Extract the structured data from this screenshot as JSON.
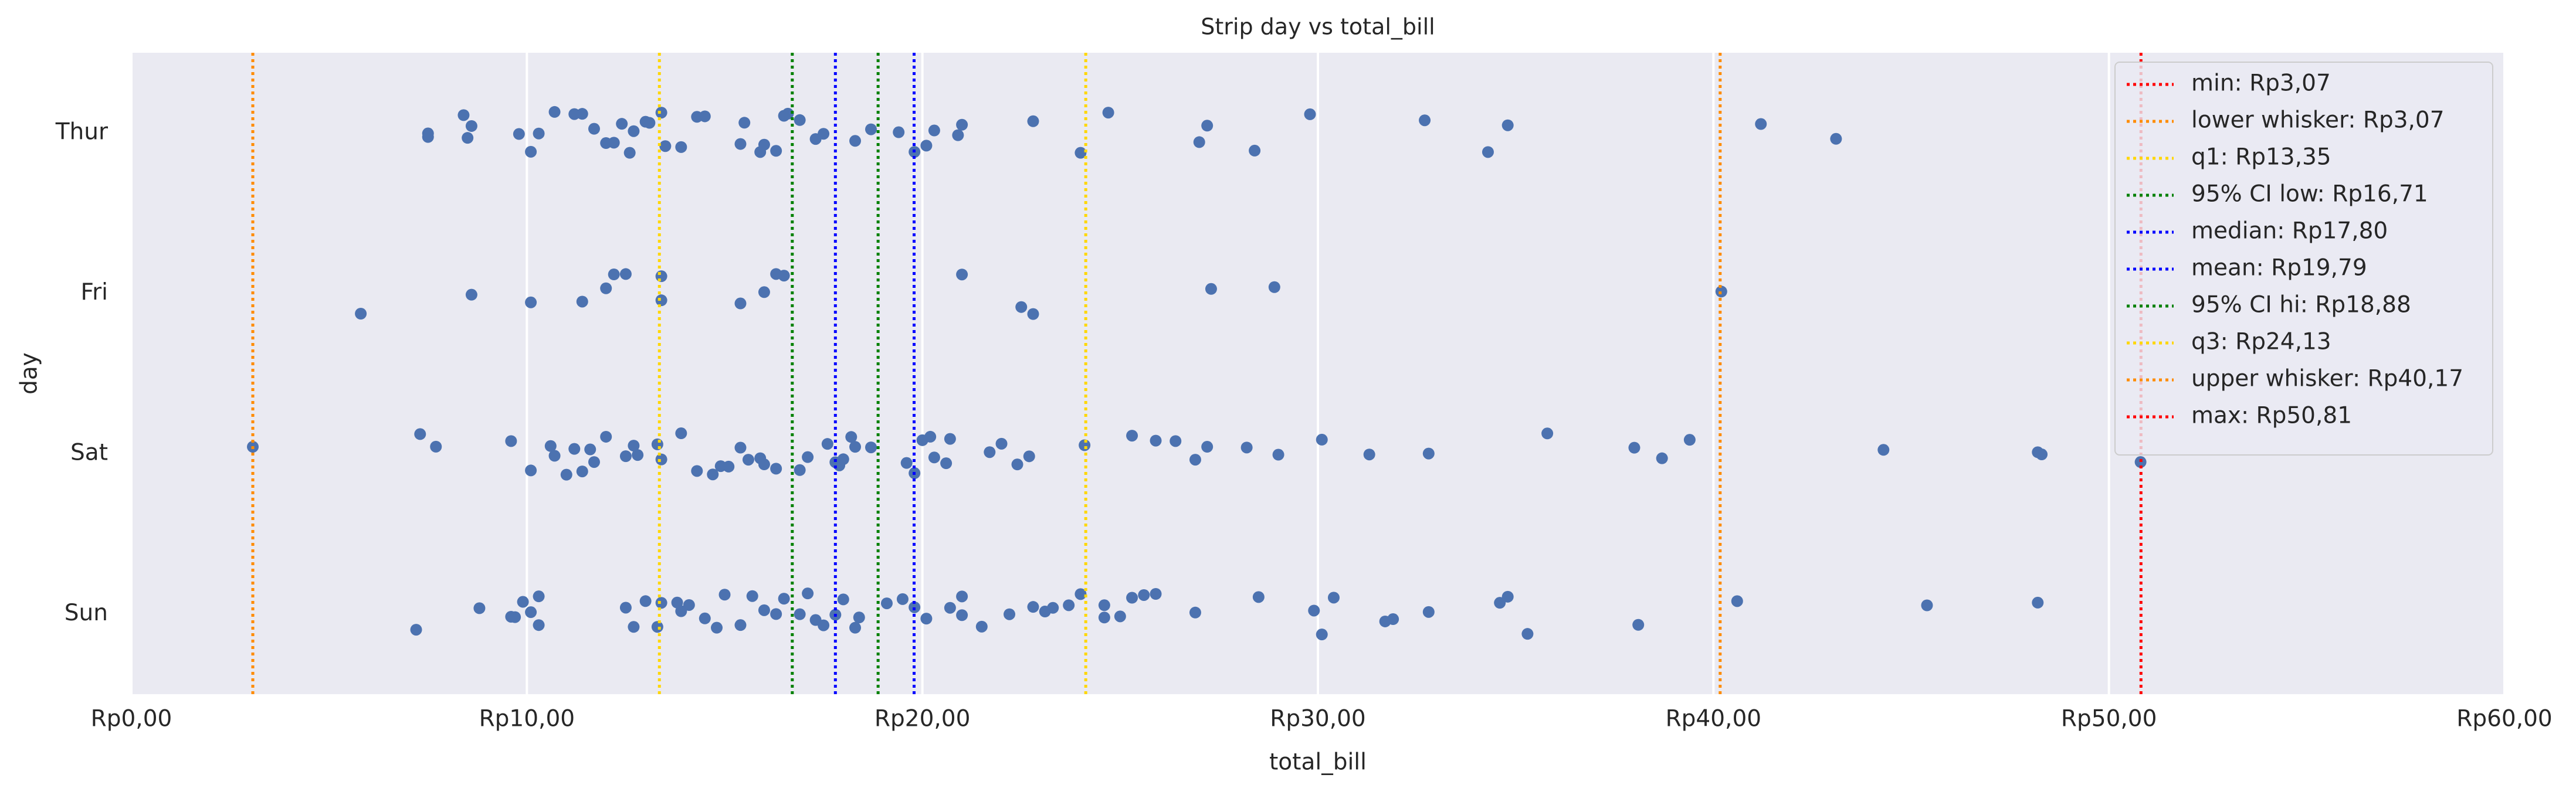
{
  "chart_data": {
    "type": "strip",
    "title": "Strip day vs total_bill",
    "x_label": "total_bill",
    "y_label": "day",
    "categories": [
      "Thur",
      "Fri",
      "Sat",
      "Sun"
    ],
    "color": "#4c72b0",
    "values": [
      [
        7.5,
        7.5,
        8.5,
        8.6,
        8.4,
        9.8,
        10.1,
        10.3,
        10.7,
        11.2,
        11.4,
        11.7,
        12.0,
        12.2,
        12.4,
        12.6,
        12.7,
        13.0,
        13.1,
        13.4,
        13.5,
        13.9,
        14.3,
        14.5,
        15.4,
        15.5,
        15.9,
        16.0,
        16.3,
        16.5,
        16.6,
        16.9,
        17.3,
        17.5,
        18.3,
        18.7,
        19.4,
        19.8,
        20.1,
        20.3,
        20.9,
        21.0,
        22.8,
        24.0,
        24.7,
        27.0,
        27.2,
        28.4,
        29.8,
        32.7,
        34.3,
        34.8,
        41.2,
        43.1
      ],
      [
        5.8,
        8.6,
        10.1,
        11.4,
        12.0,
        12.2,
        12.5,
        13.4,
        13.4,
        15.4,
        16.0,
        16.3,
        16.5,
        21.0,
        22.5,
        22.8,
        27.3,
        28.9,
        40.2
      ],
      [
        3.07,
        7.3,
        7.7,
        9.6,
        10.1,
        10.6,
        10.7,
        11.0,
        11.2,
        11.4,
        11.6,
        11.7,
        12.0,
        12.5,
        12.7,
        12.8,
        13.3,
        13.4,
        13.9,
        14.3,
        14.7,
        14.9,
        15.1,
        15.4,
        15.6,
        15.9,
        16.0,
        16.3,
        16.9,
        17.1,
        17.6,
        17.8,
        17.9,
        18.0,
        18.2,
        18.3,
        18.7,
        19.6,
        19.8,
        20.0,
        20.2,
        20.3,
        20.6,
        20.7,
        21.7,
        22.0,
        22.4,
        22.7,
        24.1,
        25.3,
        25.9,
        26.4,
        26.9,
        27.2,
        28.2,
        29.0,
        30.1,
        31.3,
        32.8,
        35.8,
        38.0,
        38.7,
        39.4,
        44.3,
        48.2,
        48.3,
        50.8
      ],
      [
        7.2,
        8.8,
        9.6,
        9.7,
        9.9,
        10.1,
        10.3,
        10.3,
        12.5,
        12.7,
        13.0,
        13.3,
        13.4,
        13.8,
        13.9,
        14.1,
        14.5,
        14.8,
        15.0,
        15.4,
        15.7,
        16.0,
        16.3,
        16.5,
        16.9,
        17.1,
        17.3,
        17.5,
        17.8,
        18.0,
        18.3,
        18.4,
        19.1,
        19.5,
        19.8,
        20.1,
        20.7,
        21.0,
        21.0,
        21.5,
        22.2,
        22.8,
        23.1,
        23.3,
        23.7,
        24.0,
        24.6,
        24.6,
        25.0,
        25.3,
        25.6,
        25.9,
        26.9,
        28.5,
        29.9,
        30.1,
        30.4,
        31.7,
        31.9,
        32.8,
        34.6,
        34.8,
        35.3,
        38.1,
        40.6,
        45.4,
        48.2
      ]
    ],
    "xlim": [
      0,
      60
    ],
    "xticks": [
      {
        "value": 0,
        "label": "Rp0,00"
      },
      {
        "value": 10,
        "label": "Rp10,00"
      },
      {
        "value": 20,
        "label": "Rp20,00"
      },
      {
        "value": 30,
        "label": "Rp30,00"
      },
      {
        "value": 40,
        "label": "Rp40,00"
      },
      {
        "value": 50,
        "label": "Rp50,00"
      },
      {
        "value": 60,
        "label": "Rp60,00"
      }
    ],
    "grid": true,
    "legend": "upper right",
    "reference_lines": [
      {
        "label": "min: Rp3,07",
        "value": 3.07,
        "color": "red"
      },
      {
        "label": "lower whisker: Rp3,07",
        "value": 3.07,
        "color": "darkorange"
      },
      {
        "label": "q1: Rp13,35",
        "value": 13.35,
        "color": "gold"
      },
      {
        "label": "95% CI low: Rp16,71",
        "value": 16.71,
        "color": "green"
      },
      {
        "label": "median: Rp17,80",
        "value": 17.8,
        "color": "blue"
      },
      {
        "label": "mean: Rp19,79",
        "value": 19.79,
        "color": "blue"
      },
      {
        "label": "95% CI hi: Rp18,88",
        "value": 18.88,
        "color": "green"
      },
      {
        "label": "q3: Rp24,13",
        "value": 24.13,
        "color": "gold"
      },
      {
        "label": "upper whisker: Rp40,17",
        "value": 40.17,
        "color": "darkorange"
      },
      {
        "label": "max: Rp50,81",
        "value": 50.81,
        "color": "red"
      }
    ]
  }
}
